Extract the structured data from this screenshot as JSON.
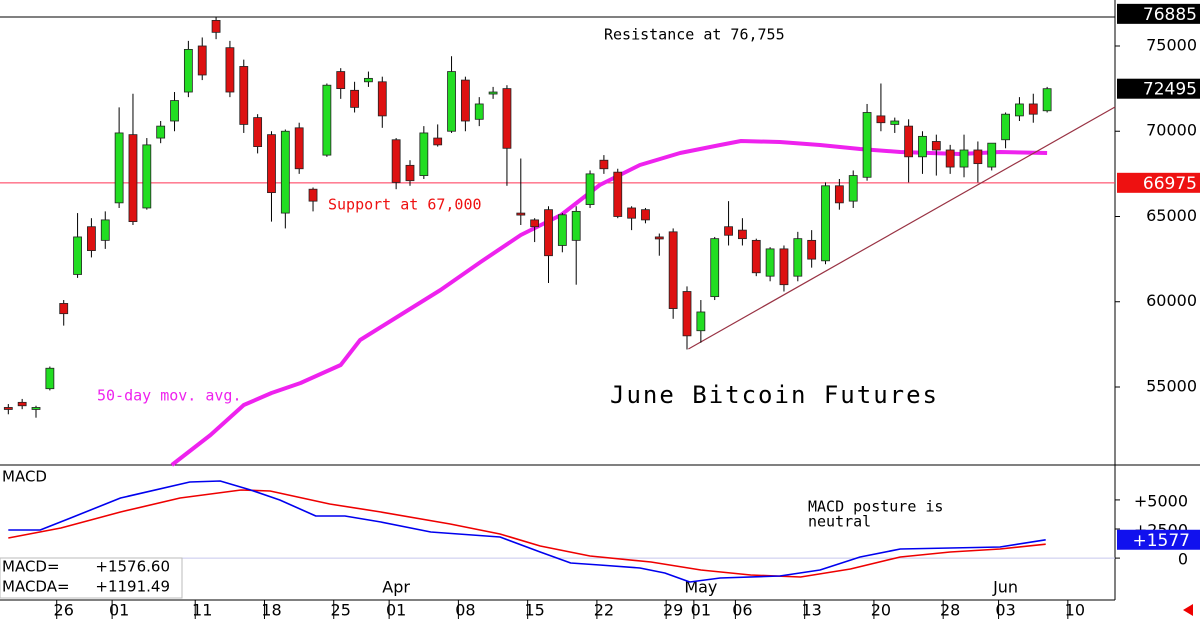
{
  "chart_data": [
    {
      "type": "candlestick",
      "title": "June Bitcoin Futures",
      "up_color": "#22dd22",
      "down_color": "#dd1111",
      "candles": [
        [
          53800,
          54000,
          53400,
          53700
        ],
        [
          54100,
          54300,
          53700,
          53900
        ],
        [
          53700,
          53900,
          53200,
          53800
        ],
        [
          54900,
          56200,
          54800,
          56100
        ],
        [
          59900,
          60100,
          58600,
          59300
        ],
        [
          61600,
          65200,
          61400,
          63800
        ],
        [
          64400,
          64900,
          62600,
          63000
        ],
        [
          63600,
          65300,
          63100,
          64800
        ],
        [
          65800,
          71400,
          65500,
          69900
        ],
        [
          69800,
          72200,
          64500,
          64700
        ],
        [
          65500,
          69600,
          65400,
          69200
        ],
        [
          69600,
          70600,
          69300,
          70300
        ],
        [
          70600,
          72300,
          70000,
          71800
        ],
        [
          72300,
          75300,
          72000,
          74800
        ],
        [
          75000,
          75500,
          73000,
          73300
        ],
        [
          76500,
          76700,
          75400,
          75800
        ],
        [
          74900,
          75300,
          72000,
          72300
        ],
        [
          73800,
          74200,
          69900,
          70400
        ],
        [
          70800,
          71000,
          68700,
          69100
        ],
        [
          69800,
          70000,
          64700,
          66400
        ],
        [
          65200,
          70100,
          64300,
          70000
        ],
        [
          70200,
          70500,
          67500,
          67800
        ],
        [
          66600,
          66700,
          65300,
          65900
        ],
        [
          68600,
          72800,
          68500,
          72700
        ],
        [
          73500,
          73700,
          71900,
          72500
        ],
        [
          72400,
          72900,
          71100,
          71400
        ],
        [
          72900,
          73500,
          72600,
          73100
        ],
        [
          72900,
          73200,
          70200,
          70900
        ],
        [
          69500,
          69600,
          66600,
          67000
        ],
        [
          68000,
          68300,
          66800,
          67100
        ],
        [
          67400,
          70300,
          67200,
          69900
        ],
        [
          69600,
          70400,
          69100,
          69200
        ],
        [
          70000,
          74400,
          69900,
          73500
        ],
        [
          73000,
          73200,
          70000,
          70600
        ],
        [
          70700,
          72000,
          70300,
          71600
        ],
        [
          72200,
          72600,
          71900,
          72300
        ],
        [
          72500,
          72700,
          66800,
          69000
        ],
        [
          65200,
          68400,
          64500,
          65100
        ],
        [
          64800,
          64900,
          63500,
          64400
        ],
        [
          65400,
          65600,
          61100,
          62700
        ],
        [
          63300,
          65200,
          62900,
          65100
        ],
        [
          63600,
          65600,
          61000,
          65300
        ],
        [
          65700,
          67700,
          65500,
          67500
        ],
        [
          68300,
          68600,
          67500,
          67800
        ],
        [
          67600,
          67800,
          64900,
          65000
        ],
        [
          65500,
          65600,
          64200,
          64900
        ],
        [
          65400,
          65500,
          64600,
          64800
        ],
        [
          63800,
          64000,
          62700,
          63700
        ],
        [
          64100,
          64300,
          59000,
          59600
        ],
        [
          60600,
          60900,
          57200,
          58000
        ],
        [
          58300,
          60100,
          57600,
          59400
        ],
        [
          60300,
          63800,
          60100,
          63700
        ],
        [
          64400,
          65900,
          63300,
          63900
        ],
        [
          64200,
          64900,
          63300,
          63700
        ],
        [
          63600,
          63700,
          61500,
          61700
        ],
        [
          61500,
          63200,
          61200,
          63100
        ],
        [
          63100,
          63300,
          60600,
          61000
        ],
        [
          61500,
          64100,
          61200,
          63700
        ],
        [
          63600,
          64200,
          62000,
          62500
        ],
        [
          62400,
          67000,
          62200,
          66800
        ],
        [
          66800,
          67200,
          65400,
          65800
        ],
        [
          65900,
          67700,
          65500,
          67400
        ],
        [
          67300,
          71600,
          67100,
          71100
        ],
        [
          70900,
          72800,
          70000,
          70500
        ],
        [
          70400,
          70800,
          69900,
          70600
        ],
        [
          70300,
          70700,
          67000,
          68500
        ],
        [
          68500,
          70000,
          67500,
          69700
        ],
        [
          69400,
          69800,
          67400,
          68900
        ],
        [
          68900,
          69200,
          67500,
          67900
        ],
        [
          67900,
          69800,
          67300,
          68900
        ],
        [
          68900,
          69400,
          67000,
          68100
        ],
        [
          67900,
          69300,
          67700,
          69300
        ],
        [
          69500,
          71100,
          69000,
          71000
        ],
        [
          70900,
          72000,
          70600,
          71600
        ],
        [
          71600,
          72200,
          70500,
          71000
        ],
        [
          71200,
          72600,
          71100,
          72495
        ]
      ],
      "xlim": [
        -0.6,
        79.9
      ],
      "ylim": [
        50425,
        76700
      ],
      "yticks": [
        55000,
        60000,
        65000,
        70000,
        75000
      ],
      "xticks": [
        {
          "value": 4,
          "label": "26"
        },
        {
          "value": 8,
          "label": "01"
        },
        {
          "value": 14,
          "label": "11"
        },
        {
          "value": 19,
          "label": "18"
        },
        {
          "value": 24,
          "label": "25"
        },
        {
          "value": 28,
          "label": "01"
        },
        {
          "value": 33,
          "label": "08"
        },
        {
          "value": 38,
          "label": "15"
        },
        {
          "value": 43,
          "label": "22"
        },
        {
          "value": 48,
          "label": "29"
        },
        {
          "value": 50,
          "label": "01"
        },
        {
          "value": 53,
          "label": "06"
        },
        {
          "value": 58,
          "label": "13"
        },
        {
          "value": 63,
          "label": "20"
        },
        {
          "value": 68,
          "label": "28"
        },
        {
          "value": 72,
          "label": "03"
        },
        {
          "value": 77,
          "label": "10"
        }
      ],
      "month_labels": [
        {
          "value": 28,
          "label": "Apr"
        },
        {
          "value": 50,
          "label": "May"
        },
        {
          "value": 72,
          "label": "Jun"
        }
      ],
      "series": [
        {
          "name": "50-day mov. avg.",
          "color": "#ee22ee",
          "x": [
            11.8,
            14.6,
            17,
            19,
            21.1,
            24,
            25.4,
            28.3,
            31.2,
            34.1,
            37,
            39.9,
            42.7,
            45.6,
            48.5,
            51.4,
            52.9,
            55.7,
            58.6,
            61.5,
            64.4,
            68.7,
            71.6,
            75
          ],
          "values": [
            50425,
            52185,
            53944,
            54648,
            55235,
            56290,
            57756,
            59223,
            60689,
            62331,
            63915,
            65088,
            66848,
            68021,
            68725,
            69194,
            69428,
            69370,
            69194,
            68959,
            68783,
            68666,
            68783,
            68725
          ]
        }
      ],
      "trendline": {
        "color": "#993344",
        "x": [
          49.1,
          79.9
        ],
        "values": [
          57230,
          71420
        ]
      },
      "reference_line": {
        "value": 66975,
        "color": "#ff3355"
      },
      "price_boxes": [
        {
          "value": 76885,
          "color": "#000000"
        },
        {
          "value": 72495,
          "color": "#000000"
        },
        {
          "value": 66975,
          "color": "#ee1111"
        }
      ],
      "annotations": [
        "Resistance at 76,755",
        "Support at 67,000"
      ]
    },
    {
      "type": "line",
      "title": "MACD",
      "series": [
        {
          "name": "MACD",
          "color": "#0000ee",
          "x": [
            0,
            2.3,
            4.5,
            8.1,
            13.1,
            15.3,
            17.5,
            19.6,
            22.2,
            24.3,
            26.9,
            30.5,
            35.5,
            38.4,
            40.6,
            42.7,
            45.6,
            47.4,
            49.2,
            51.4,
            55.7,
            58.6,
            61.5,
            64.4,
            68,
            71.6,
            74.9
          ],
          "values": [
            2415,
            2415,
            3446,
            5164,
            6539,
            6625,
            5852,
            4993,
            3617,
            3617,
            3102,
            2243,
            1813,
            524,
            -421,
            -593,
            -851,
            -1281,
            -2054,
            -1710,
            -1539,
            -1023,
            93,
            782,
            868,
            954,
            1577
          ]
        },
        {
          "name": "MACDA",
          "color": "#ee0000",
          "x": [
            0,
            3.8,
            8.1,
            12.4,
            16.8,
            18.9,
            23.2,
            26.9,
            31.9,
            35.5,
            38.4,
            42,
            46.4,
            50,
            53.6,
            57.2,
            60.8,
            64.4,
            68,
            71.6,
            74.9
          ],
          "values": [
            1727,
            2587,
            3961,
            5164,
            5852,
            5766,
            4649,
            3961,
            2930,
            2071,
            1040,
            181,
            -335,
            -1023,
            -1453,
            -1625,
            -937,
            93,
            524,
            782,
            1191
          ]
        }
      ],
      "ylim": [
        -3600,
        8000
      ],
      "yticks": [
        {
          "value": 5000,
          "label": "+5000"
        },
        {
          "value": 2500,
          "label": "+2500"
        },
        0
      ],
      "readout_names": [
        "MACD=",
        "MACDA="
      ],
      "readout": {
        "values": [
          1576.6,
          1191.49
        ],
        "value_labels": [
          "+1576.60",
          "+1191.49"
        ]
      },
      "last_value": {
        "value": 1577,
        "label": "+1577",
        "color": "#1111ee"
      },
      "annotation": [
        "MACD posture is",
        "neutral"
      ]
    }
  ]
}
